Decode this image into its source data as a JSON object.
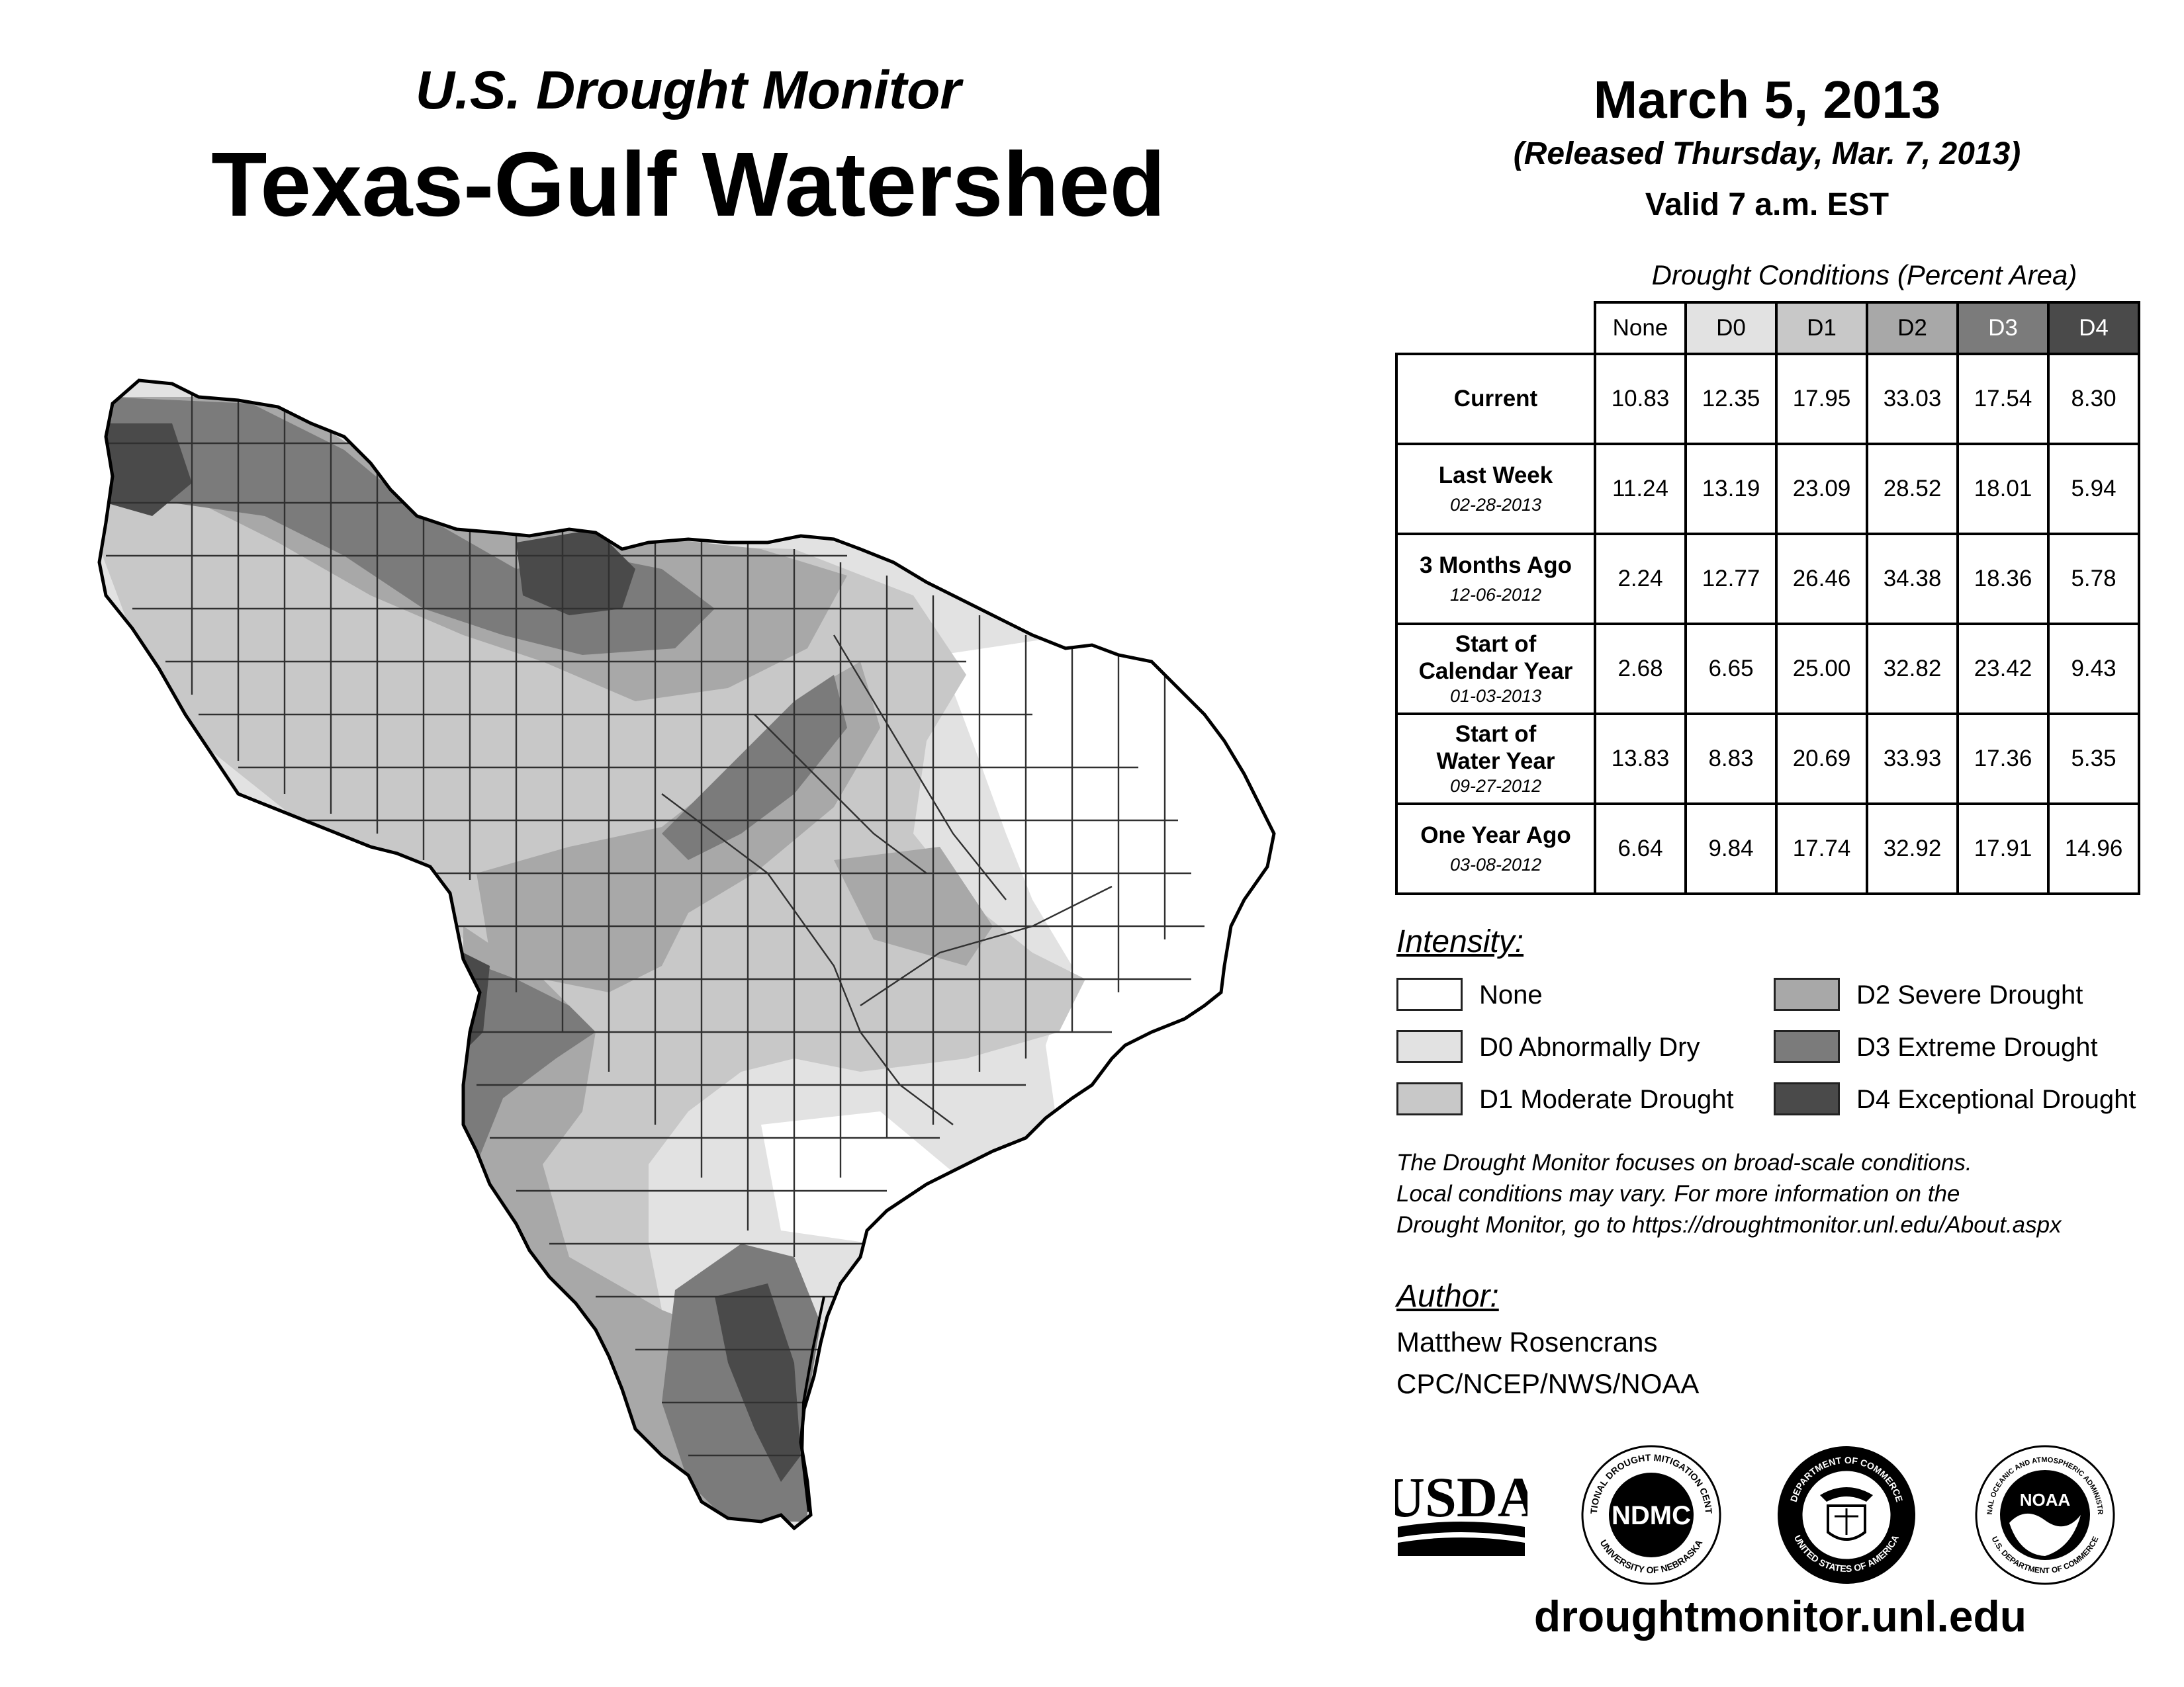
{
  "header": {
    "subtitle": "U.S. Drought Monitor",
    "title": "Texas-Gulf Watershed",
    "date": "March 5, 2013",
    "released": "(Released Thursday, Mar. 7, 2013)",
    "valid": "Valid 7 a.m. EST"
  },
  "table": {
    "caption": "Drought Conditions (Percent Area)",
    "columns": [
      "None",
      "D0",
      "D1",
      "D2",
      "D3",
      "D4"
    ],
    "rows": [
      {
        "label1": "Current",
        "label2": "",
        "date": "",
        "values": [
          "10.83",
          "12.35",
          "17.95",
          "33.03",
          "17.54",
          "8.30"
        ]
      },
      {
        "label1": "Last Week",
        "label2": "",
        "date": "02-28-2013",
        "values": [
          "11.24",
          "13.19",
          "23.09",
          "28.52",
          "18.01",
          "5.94"
        ]
      },
      {
        "label1": "3 Months Ago",
        "label2": "",
        "date": "12-06-2012",
        "values": [
          "2.24",
          "12.77",
          "26.46",
          "34.38",
          "18.36",
          "5.78"
        ]
      },
      {
        "label1": "Start of",
        "label2": "Calendar Year",
        "date": "01-03-2013",
        "values": [
          "2.68",
          "6.65",
          "25.00",
          "32.82",
          "23.42",
          "9.43"
        ]
      },
      {
        "label1": "Start of",
        "label2": "Water Year",
        "date": "09-27-2012",
        "values": [
          "13.83",
          "8.83",
          "20.69",
          "33.93",
          "17.36",
          "5.35"
        ]
      },
      {
        "label1": "One Year Ago",
        "label2": "",
        "date": "03-08-2012",
        "values": [
          "6.64",
          "9.84",
          "17.74",
          "32.92",
          "17.91",
          "14.96"
        ]
      }
    ]
  },
  "legend": {
    "heading": "Intensity:",
    "items": [
      {
        "label": "None",
        "color": "#ffffff"
      },
      {
        "label": "D0 Abnormally Dry",
        "color": "#e2e2e2"
      },
      {
        "label": "D1 Moderate Drought",
        "color": "#c8c8c8"
      },
      {
        "label": "D2 Severe Drought",
        "color": "#a8a8a8"
      },
      {
        "label": "D3 Extreme Drought",
        "color": "#7b7b7b"
      },
      {
        "label": "D4 Exceptional Drought",
        "color": "#4a4a4a"
      }
    ]
  },
  "note": {
    "line1": "The Drought Monitor focuses on broad-scale conditions.",
    "line2": "Local conditions may vary. For more information on the",
    "line3": "Drought Monitor, go to https://droughtmonitor.unl.edu/About.aspx"
  },
  "author": {
    "heading": "Author:",
    "name": "Matthew Rosencrans",
    "org": "CPC/NCEP/NWS/NOAA"
  },
  "logos": {
    "usda": "USDA",
    "ndmc": "NDMC",
    "ndmc_ring_top": "NATIONAL DROUGHT MITIGATION CENTER",
    "ndmc_ring_bottom": "UNIVERSITY OF NEBRASKA",
    "doc_ring_top": "DEPARTMENT OF COMMERCE",
    "doc_ring_bottom": "UNITED STATES OF AMERICA",
    "noaa": "NOAA",
    "noaa_ring_top": "NATIONAL OCEANIC AND ATMOSPHERIC ADMINISTRATION",
    "noaa_ring_bottom": "U.S. DEPARTMENT OF COMMERCE"
  },
  "website": "droughtmonitor.unl.edu",
  "colors": {
    "none": "#ffffff",
    "d0": "#e2e2e2",
    "d1": "#c8c8c8",
    "d2": "#a8a8a8",
    "d3": "#7b7b7b",
    "d4": "#4a4a4a",
    "border": "#000000",
    "county": "#303030"
  }
}
